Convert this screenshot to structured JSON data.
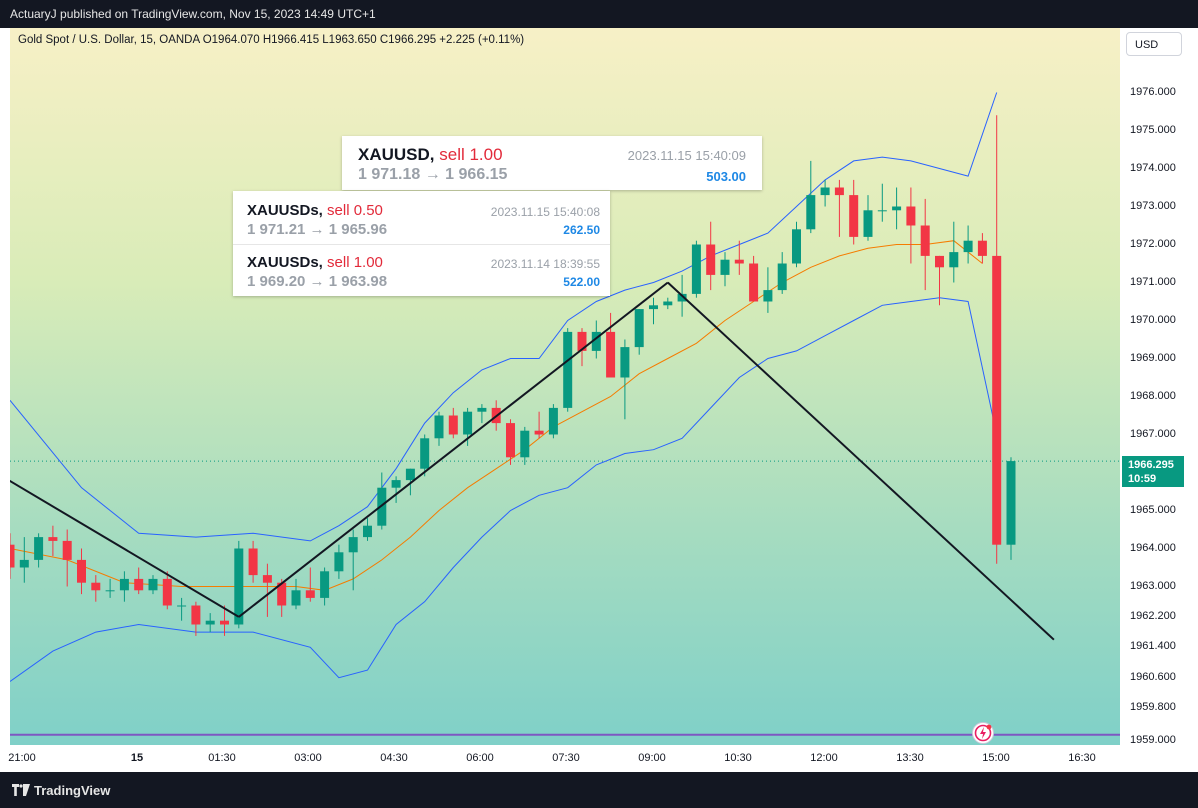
{
  "header": {
    "published": "ActuaryJ published on TradingView.com, Nov 15, 2023 14:49 UTC+1"
  },
  "legend": {
    "text": "Gold Spot / U.S. Dollar, 15, OANDA  O1964.070  H1966.415  L1963.650  C1966.295  +2.225 (+0.11%)"
  },
  "currency_button": "USD",
  "current_price": {
    "value": "1966.295",
    "countdown": "10:59"
  },
  "footer": {
    "brand": "TradingView"
  },
  "trades": [
    {
      "symbol": "XAUUSD,",
      "side": "sell 1.00",
      "date": "2023.11.15 15:40:09",
      "prices": "1 971.18 → 1 966.15",
      "pnl": "503.00"
    },
    {
      "symbol": "XAUUSDs,",
      "side": "sell 0.50",
      "date": "2023.11.15 15:40:08",
      "prices": "1 971.21 → 1 965.96",
      "pnl": "262.50"
    },
    {
      "symbol": "XAUUSDs,",
      "side": "sell 1.00",
      "date": "2023.11.14 18:39:55",
      "prices": "1 969.20 → 1 963.98",
      "pnl": "522.00"
    }
  ],
  "colors": {
    "up": "#089981",
    "down": "#f23645",
    "bollinger": "#2962ff",
    "ma": "#f57c00",
    "trendline": "#131722"
  },
  "chart_data": {
    "type": "candlestick",
    "title": "",
    "x_tick_labels": [
      "21:00",
      "15",
      "01:30",
      "03:00",
      "04:30",
      "06:00",
      "07:30",
      "09:00",
      "10:30",
      "12:00",
      "13:30",
      "15:00",
      "16:30"
    ],
    "y_tick_labels": [
      "1976.000",
      "1975.000",
      "1974.000",
      "1973.000",
      "1972.000",
      "1971.000",
      "1970.000",
      "1969.000",
      "1968.000",
      "1967.000",
      "1965.000",
      "1964.000",
      "1963.000",
      "1962.200",
      "1961.400",
      "1960.600",
      "1959.800",
      "1959.000"
    ],
    "candles": [
      [
        1964.1,
        1964.4,
        1963.2,
        1963.5
      ],
      [
        1963.5,
        1964.3,
        1963.1,
        1963.7
      ],
      [
        1963.7,
        1964.4,
        1963.5,
        1964.3
      ],
      [
        1964.3,
        1964.6,
        1963.8,
        1964.2
      ],
      [
        1964.2,
        1964.5,
        1963.0,
        1963.7
      ],
      [
        1963.7,
        1964.0,
        1962.8,
        1963.1
      ],
      [
        1963.1,
        1963.3,
        1962.6,
        1962.9
      ],
      [
        1962.9,
        1963.2,
        1962.7,
        1962.9
      ],
      [
        1962.9,
        1963.4,
        1962.6,
        1963.2
      ],
      [
        1963.2,
        1963.5,
        1962.8,
        1962.9
      ],
      [
        1962.9,
        1963.3,
        1962.8,
        1963.2
      ],
      [
        1963.2,
        1963.4,
        1962.4,
        1962.5
      ],
      [
        1962.5,
        1962.7,
        1962.1,
        1962.5
      ],
      [
        1962.5,
        1962.6,
        1961.7,
        1962.0
      ],
      [
        1962.0,
        1962.3,
        1961.8,
        1962.1
      ],
      [
        1962.1,
        1962.5,
        1961.7,
        1962.0
      ],
      [
        1962.0,
        1964.2,
        1961.9,
        1964.0
      ],
      [
        1964.0,
        1964.2,
        1963.1,
        1963.3
      ],
      [
        1963.3,
        1963.6,
        1962.2,
        1963.1
      ],
      [
        1963.1,
        1963.2,
        1962.2,
        1962.5
      ],
      [
        1962.5,
        1963.2,
        1962.4,
        1962.9
      ],
      [
        1962.9,
        1963.5,
        1962.6,
        1962.7
      ],
      [
        1962.7,
        1963.5,
        1962.5,
        1963.4
      ],
      [
        1963.4,
        1964.1,
        1963.2,
        1963.9
      ],
      [
        1963.9,
        1964.5,
        1962.9,
        1964.3
      ],
      [
        1964.3,
        1964.8,
        1964.2,
        1964.6
      ],
      [
        1964.6,
        1966.0,
        1964.5,
        1965.6
      ],
      [
        1965.6,
        1965.9,
        1965.2,
        1965.8
      ],
      [
        1965.8,
        1966.1,
        1965.4,
        1966.1
      ],
      [
        1966.1,
        1967.0,
        1965.9,
        1966.9
      ],
      [
        1966.9,
        1967.6,
        1966.7,
        1967.5
      ],
      [
        1967.5,
        1967.7,
        1966.9,
        1967.0
      ],
      [
        1967.0,
        1967.7,
        1966.7,
        1967.6
      ],
      [
        1967.6,
        1967.8,
        1967.3,
        1967.7
      ],
      [
        1967.7,
        1967.9,
        1967.1,
        1967.3
      ],
      [
        1967.3,
        1967.4,
        1966.2,
        1966.4
      ],
      [
        1966.4,
        1967.2,
        1966.2,
        1967.1
      ],
      [
        1967.1,
        1967.6,
        1966.9,
        1967.0
      ],
      [
        1967.0,
        1967.8,
        1966.9,
        1967.7
      ],
      [
        1967.7,
        1969.8,
        1967.6,
        1969.7
      ],
      [
        1969.7,
        1969.8,
        1968.8,
        1969.2
      ],
      [
        1969.2,
        1970.0,
        1969.0,
        1969.7
      ],
      [
        1969.7,
        1970.2,
        1968.6,
        1968.5
      ],
      [
        1968.5,
        1969.5,
        1967.4,
        1969.3
      ],
      [
        1969.3,
        1970.3,
        1969.1,
        1970.3
      ],
      [
        1970.3,
        1970.6,
        1969.9,
        1970.4
      ],
      [
        1970.4,
        1970.6,
        1970.3,
        1970.5
      ],
      [
        1970.5,
        1971.2,
        1970.1,
        1970.7
      ],
      [
        1970.7,
        1972.1,
        1970.6,
        1972.0
      ],
      [
        1972.0,
        1972.6,
        1970.8,
        1971.2
      ],
      [
        1971.2,
        1971.8,
        1970.9,
        1971.6
      ],
      [
        1971.6,
        1972.1,
        1971.2,
        1971.5
      ],
      [
        1971.5,
        1971.7,
        1970.5,
        1970.5
      ],
      [
        1970.5,
        1971.4,
        1970.2,
        1970.8
      ],
      [
        1970.8,
        1971.8,
        1970.7,
        1971.5
      ],
      [
        1971.5,
        1972.6,
        1971.4,
        1972.4
      ],
      [
        1972.4,
        1974.2,
        1972.3,
        1973.3
      ],
      [
        1973.3,
        1973.7,
        1973.0,
        1973.5
      ],
      [
        1973.5,
        1973.7,
        1972.2,
        1973.3
      ],
      [
        1973.3,
        1973.7,
        1972.0,
        1972.2
      ],
      [
        1972.2,
        1973.3,
        1972.1,
        1972.9
      ],
      [
        1972.9,
        1973.6,
        1972.6,
        1972.9
      ],
      [
        1972.9,
        1973.5,
        1972.4,
        1973.0
      ],
      [
        1973.0,
        1973.5,
        1971.5,
        1972.5
      ],
      [
        1972.5,
        1973.2,
        1970.8,
        1971.7
      ],
      [
        1971.7,
        1971.7,
        1970.4,
        1971.4
      ],
      [
        1971.4,
        1972.6,
        1971.0,
        1971.8
      ],
      [
        1971.8,
        1972.5,
        1971.5,
        1972.1
      ],
      [
        1972.1,
        1972.3,
        1971.5,
        1971.7
      ],
      [
        1971.7,
        1975.4,
        1963.6,
        1964.1
      ],
      [
        1964.1,
        1966.4,
        1963.7,
        1966.3
      ]
    ],
    "bollinger_upper": [
      [
        0,
        1967.9
      ],
      [
        5,
        1965.6
      ],
      [
        9,
        1964.4
      ],
      [
        13,
        1964.3
      ],
      [
        17,
        1964.4
      ],
      [
        21,
        1964.2
      ],
      [
        23,
        1964.6
      ],
      [
        25,
        1965.1
      ],
      [
        27,
        1966.1
      ],
      [
        29,
        1967.3
      ],
      [
        31,
        1968.1
      ],
      [
        33,
        1968.7
      ],
      [
        35,
        1969.0
      ],
      [
        37,
        1969.0
      ],
      [
        39,
        1970.0
      ],
      [
        41,
        1970.5
      ],
      [
        43,
        1970.8
      ],
      [
        45,
        1971.0
      ],
      [
        47,
        1971.3
      ],
      [
        49,
        1971.7
      ],
      [
        51,
        1972.0
      ],
      [
        53,
        1972.3
      ],
      [
        55,
        1973.0
      ],
      [
        57,
        1973.7
      ],
      [
        59,
        1974.2
      ],
      [
        61,
        1974.3
      ],
      [
        63,
        1974.2
      ],
      [
        65,
        1974.0
      ],
      [
        67,
        1973.8
      ],
      [
        69,
        1976.0
      ]
    ],
    "bollinger_lower": [
      [
        0,
        1960.5
      ],
      [
        3,
        1961.3
      ],
      [
        6,
        1961.8
      ],
      [
        9,
        1962.0
      ],
      [
        13,
        1961.8
      ],
      [
        17,
        1961.8
      ],
      [
        21,
        1961.4
      ],
      [
        23,
        1960.6
      ],
      [
        25,
        1960.8
      ],
      [
        27,
        1962.0
      ],
      [
        29,
        1962.6
      ],
      [
        31,
        1963.5
      ],
      [
        33,
        1964.3
      ],
      [
        35,
        1965.0
      ],
      [
        37,
        1965.4
      ],
      [
        39,
        1965.6
      ],
      [
        41,
        1966.2
      ],
      [
        43,
        1966.5
      ],
      [
        45,
        1966.6
      ],
      [
        47,
        1966.9
      ],
      [
        49,
        1967.7
      ],
      [
        51,
        1968.5
      ],
      [
        53,
        1969.0
      ],
      [
        55,
        1969.2
      ],
      [
        57,
        1969.6
      ],
      [
        59,
        1970.0
      ],
      [
        61,
        1970.4
      ],
      [
        63,
        1970.5
      ],
      [
        65,
        1970.6
      ],
      [
        67,
        1970.5
      ],
      [
        69,
        1967.0
      ]
    ],
    "ma": [
      [
        0,
        1964.0
      ],
      [
        4,
        1963.7
      ],
      [
        8,
        1963.1
      ],
      [
        12,
        1963.0
      ],
      [
        16,
        1963.0
      ],
      [
        20,
        1963.0
      ],
      [
        22,
        1962.9
      ],
      [
        24,
        1963.2
      ],
      [
        26,
        1963.7
      ],
      [
        28,
        1964.3
      ],
      [
        30,
        1965.0
      ],
      [
        32,
        1965.6
      ],
      [
        34,
        1966.1
      ],
      [
        36,
        1966.6
      ],
      [
        38,
        1967.2
      ],
      [
        40,
        1967.6
      ],
      [
        42,
        1968.0
      ],
      [
        44,
        1968.6
      ],
      [
        46,
        1969.0
      ],
      [
        48,
        1969.4
      ],
      [
        50,
        1970.0
      ],
      [
        52,
        1970.5
      ],
      [
        54,
        1971.0
      ],
      [
        56,
        1971.4
      ],
      [
        58,
        1971.7
      ],
      [
        60,
        1971.9
      ],
      [
        62,
        1972.0
      ],
      [
        64,
        1972.0
      ],
      [
        66,
        1972.1
      ],
      [
        68,
        1971.5
      ]
    ],
    "trendlines": [
      {
        "from": [
          -1,
          1966.0
        ],
        "to": [
          16,
          1962.2
        ]
      },
      {
        "from": [
          16,
          1962.2
        ],
        "to": [
          46,
          1971.0
        ]
      },
      {
        "from": [
          46,
          1971.0
        ],
        "to": [
          73,
          1961.6
        ]
      }
    ],
    "y_range": [
      1958.9,
      1977.6
    ]
  }
}
